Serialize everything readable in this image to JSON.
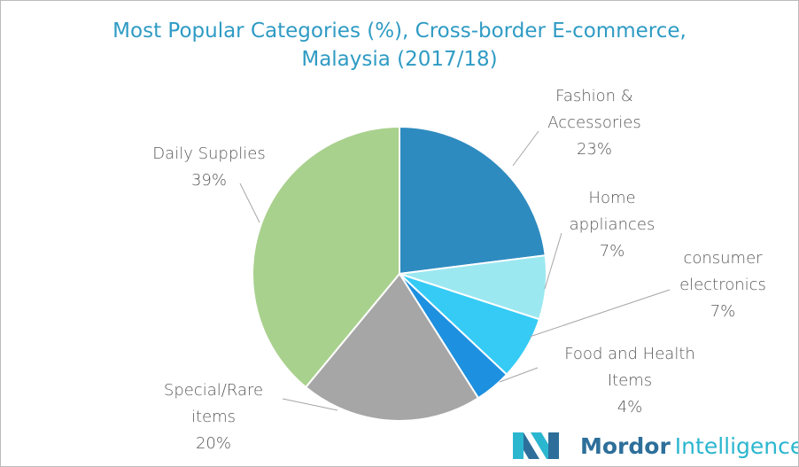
{
  "chart_data": {
    "type": "pie",
    "title": "Most Popular Categories (%), Cross-border E-commerce, Malaysia (2017/18)",
    "categories": [
      "Fashion & Accessories",
      "Home appliances",
      "consumer electronics",
      "Food and Health Items",
      "Special/Rare items",
      "Daily Supplies"
    ],
    "values": [
      23,
      7,
      7,
      4,
      20,
      39
    ],
    "value_labels": [
      "23%",
      "7%",
      "7%",
      "4%",
      "20%",
      "39%"
    ],
    "colors": [
      "#2e8bc0",
      "#9ce8f1",
      "#35cbf5",
      "#1e90e0",
      "#a6a6a6",
      "#a9d18e"
    ]
  },
  "logo": [
    "Mordor",
    "Intelligence"
  ]
}
